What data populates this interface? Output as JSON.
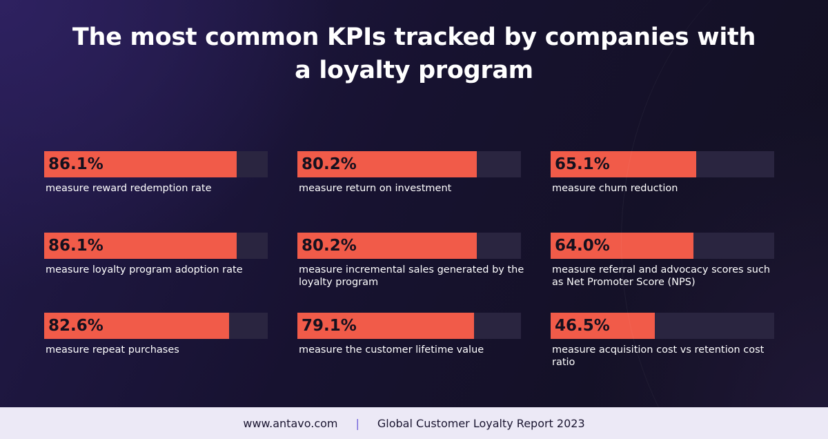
{
  "title": "The most common KPIs tracked by companies with a loyalty program",
  "footer": {
    "website": "www.antavo.com",
    "separator": "|",
    "source": "Global Customer Loyalty Report 2023"
  },
  "colors": {
    "bar_fill": "#f15b49",
    "bar_track": "#2a2540",
    "value_text": "#14101e",
    "background": "#171230"
  },
  "chart_data": {
    "type": "bar",
    "title": "The most common KPIs tracked by companies with a loyalty program",
    "unit": "%",
    "ylim": [
      0,
      100
    ],
    "layout": "3x3 grid of horizontal progress bars",
    "items": [
      {
        "value": 86.1,
        "value_label": "86.1%",
        "label": "measure reward redemption rate"
      },
      {
        "value": 80.2,
        "value_label": "80.2%",
        "label": "measure return on investment"
      },
      {
        "value": 65.1,
        "value_label": "65.1%",
        "label": "measure churn reduction"
      },
      {
        "value": 86.1,
        "value_label": "86.1%",
        "label": "measure loyalty program adoption rate"
      },
      {
        "value": 80.2,
        "value_label": "80.2%",
        "label": "measure incremental sales generated by the loyalty program"
      },
      {
        "value": 64.0,
        "value_label": "64.0%",
        "label": "measure referral and advocacy scores such as Net Promoter Score (NPS)"
      },
      {
        "value": 82.6,
        "value_label": "82.6%",
        "label": "measure repeat purchases"
      },
      {
        "value": 79.1,
        "value_label": "79.1%",
        "label": "measure the customer lifetime value"
      },
      {
        "value": 46.5,
        "value_label": "46.5%",
        "label": "measure acquisition cost vs retention cost ratio"
      }
    ]
  }
}
